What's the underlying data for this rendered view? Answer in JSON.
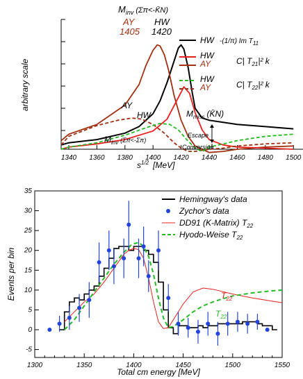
{
  "chart_data": [
    {
      "type": "line",
      "xlabel": "s^{1/2}  [MeV]",
      "xlabel_main": "s",
      "xlabel_sup": "1/2",
      "xlabel_unit": "[MeV]",
      "ylabel": "arbitrary scale",
      "xlim": [
        1325,
        1500
      ],
      "xticks": [
        1340,
        1360,
        1380,
        1400,
        1420,
        1440,
        1460,
        1480,
        1500
      ],
      "annotations": {
        "minv_top": "M_inv (Σπ<-K̄N)",
        "minv_top_main": "M",
        "minv_top_sub": "inv",
        "minv_top_paren": "(Σπ<-K̄N)",
        "ay_label": "AY",
        "ay_mass": "1405",
        "hw_label": "HW",
        "hw_mass": "1420",
        "ay_curve": "AY",
        "hw_curve": "HW",
        "minv_bottom_main": "M",
        "minv_bottom_sub": "inv",
        "minv_bottom_paren": "(Σπ<-Σπ)",
        "mmiss_main": "M",
        "mmiss_sub": "miss",
        "mmiss_paren": "(K̄N)",
        "escape": "Escape",
        "conversion": "Conversion"
      },
      "legend": [
        {
          "label": "HW",
          "formula": "-(1/π) Im T11",
          "color": "#000000",
          "style": "solid"
        },
        {
          "label": "HW / AY",
          "formula": "C| T21|² k",
          "color": "#e8201c",
          "style": "solid"
        },
        {
          "label": "HW / AY",
          "formula": "C| T22|² k",
          "color": "#22bb22",
          "style": "dashed"
        }
      ],
      "legend_text": {
        "hw1": "HW",
        "f1": "-(1/π) Im T",
        "f1_sub": "11",
        "hw2": "HW",
        "ay2": "AY",
        "f2": "C| T",
        "f2_sub": "21",
        "f2_tail": "|² k",
        "hw3": "HW",
        "ay3": "AY",
        "f3": "C| T",
        "f3_sub": "22",
        "f3_tail": "|² k"
      },
      "series": [
        {
          "key": "hw_im_t11",
          "color": "#000000",
          "dash": "",
          "x": [
            1325,
            1340,
            1360,
            1380,
            1390,
            1400,
            1405,
            1410,
            1415,
            1418,
            1420,
            1422,
            1425,
            1428,
            1430,
            1435,
            1440,
            1450,
            1460,
            1480,
            1500
          ],
          "y": [
            0.04,
            0.06,
            0.09,
            0.15,
            0.21,
            0.33,
            0.45,
            0.62,
            0.82,
            0.94,
            0.97,
            0.93,
            0.76,
            0.52,
            0.38,
            0.29,
            0.27,
            0.25,
            0.23,
            0.21,
            0.19
          ]
        },
        {
          "key": "ay_t21",
          "color": "#a03010",
          "dash": "",
          "x": [
            1325,
            1340,
            1360,
            1380,
            1390,
            1395,
            1400,
            1403,
            1405,
            1408,
            1411,
            1415,
            1420,
            1425,
            1430,
            1440,
            1450,
            1460,
            1480,
            1500
          ],
          "y": [
            0.08,
            0.14,
            0.23,
            0.41,
            0.6,
            0.78,
            0.92,
            0.97,
            0.96,
            0.88,
            0.74,
            0.5,
            0.27,
            0.12,
            0.03,
            -0.03,
            -0.02,
            0.0,
            0.02,
            0.03
          ]
        },
        {
          "key": "hw_t21",
          "color": "#e8201c",
          "dash": "",
          "x": [
            1325,
            1340,
            1360,
            1380,
            1400,
            1410,
            1418,
            1422,
            1426,
            1430,
            1435,
            1440,
            1450,
            1460,
            1480,
            1500
          ],
          "y": [
            0.0,
            0.02,
            0.05,
            0.09,
            0.17,
            0.28,
            0.48,
            0.58,
            0.52,
            0.34,
            0.18,
            0.09,
            0.04,
            0.02,
            0.01,
            0.0
          ]
        },
        {
          "key": "ay_t22",
          "color": "#a03010",
          "dash": "5,3",
          "x": [
            1325,
            1340,
            1360,
            1375,
            1385,
            1392,
            1400,
            1408,
            1415,
            1420,
            1425,
            1430,
            1440,
            1450,
            1460,
            1480,
            1500
          ],
          "y": [
            0.04,
            0.12,
            0.22,
            0.27,
            0.29,
            0.28,
            0.23,
            0.15,
            0.06,
            0.01,
            -0.02,
            -0.02,
            0.0,
            0.01,
            0.03,
            0.05,
            0.06
          ]
        },
        {
          "key": "hw_t22",
          "color": "#22bb22",
          "dash": "5,3",
          "x": [
            1325,
            1340,
            1360,
            1380,
            1395,
            1405,
            1412,
            1418,
            1424,
            1430,
            1435,
            1440,
            1450,
            1460,
            1480,
            1500
          ],
          "y": [
            0.0,
            0.02,
            0.06,
            0.13,
            0.2,
            0.24,
            0.23,
            0.18,
            0.09,
            0.01,
            -0.02,
            0.02,
            0.05,
            0.08,
            0.12,
            0.14
          ]
        }
      ]
    },
    {
      "type": "line",
      "xlabel": "Total cm energy [MeV]",
      "ylabel": "Events per bin",
      "xlim": [
        1300,
        1550
      ],
      "ylim": [
        -7,
        35
      ],
      "xticks": [
        1300,
        1350,
        1400,
        1450,
        1500,
        1550
      ],
      "yticks": [
        -5,
        0,
        5,
        10,
        15,
        20,
        25,
        30,
        35
      ],
      "legend": [
        {
          "label": "Hemingway's data",
          "color": "#000000",
          "style": "step"
        },
        {
          "label": "Zychor's data",
          "color": "#2244dd",
          "style": "points"
        },
        {
          "label": "DD91 (K-Matrix)  T22",
          "color": "#e8201c",
          "style": "solid"
        },
        {
          "label": "Hyodo-Weise  T22",
          "color": "#22bb22",
          "style": "dashed"
        }
      ],
      "legend_text": {
        "l1": "Hemingway's data",
        "l2": "Zychor's data",
        "l3": "DD91 (K-Matrix)  T",
        "l3_sub": "22",
        "l4": "Hyodo-Weise  T",
        "l4_sub": "22"
      },
      "curve_labels": {
        "red": "T",
        "red_sub": "22",
        "green": "T",
        "green_sub": "22"
      },
      "hemingway_step": {
        "edges": [
          1325,
          1330,
          1335,
          1340,
          1345,
          1350,
          1355,
          1360,
          1365,
          1370,
          1375,
          1380,
          1385,
          1390,
          1395,
          1400,
          1405,
          1410,
          1415,
          1420,
          1425,
          1430,
          1435,
          1440,
          1445,
          1450,
          1455,
          1460,
          1465,
          1470,
          1475,
          1480,
          1485,
          1490,
          1495,
          1500,
          1505,
          1510,
          1515,
          1520,
          1525,
          1530,
          1535,
          1540,
          1545
        ],
        "values": [
          0,
          4.5,
          7,
          8,
          7.5,
          9,
          10,
          11,
          13.5,
          15.5,
          18,
          20.5,
          21,
          21,
          20,
          21,
          21,
          20,
          19,
          17,
          12,
          5,
          0.5,
          -1,
          1,
          1,
          0.5,
          0.5,
          1,
          0.5,
          1,
          1,
          1.5,
          1.5,
          1.5,
          1.5,
          1.5,
          2,
          2,
          2,
          1.5,
          1,
          1,
          0
        ]
      },
      "zychor_points": [
        {
          "x": 1315,
          "y": 0,
          "err": 0
        },
        {
          "x": 1325,
          "y": 1.5,
          "err": 2
        },
        {
          "x": 1335,
          "y": 3,
          "err": 3
        },
        {
          "x": 1345,
          "y": 5.5,
          "err": 3.5
        },
        {
          "x": 1355,
          "y": 7.5,
          "err": 4.5
        },
        {
          "x": 1365,
          "y": 17,
          "err": 5
        },
        {
          "x": 1375,
          "y": 20,
          "err": 5
        },
        {
          "x": 1380,
          "y": 16,
          "err": 4.5
        },
        {
          "x": 1390,
          "y": 18,
          "err": 5
        },
        {
          "x": 1395,
          "y": 26.5,
          "err": 6
        },
        {
          "x": 1405,
          "y": 18,
          "err": 5
        },
        {
          "x": 1410,
          "y": 21,
          "err": 5
        },
        {
          "x": 1415,
          "y": 13.5,
          "err": 4
        },
        {
          "x": 1425,
          "y": 20,
          "err": 5
        },
        {
          "x": 1435,
          "y": 8,
          "err": 3.5
        },
        {
          "x": 1445,
          "y": 1.5,
          "err": 3
        },
        {
          "x": 1455,
          "y": 0.5,
          "err": 2.5
        },
        {
          "x": 1465,
          "y": -0.5,
          "err": 3
        },
        {
          "x": 1475,
          "y": 1.5,
          "err": 3
        },
        {
          "x": 1485,
          "y": -1,
          "err": 3
        },
        {
          "x": 1495,
          "y": 1.5,
          "err": 3
        },
        {
          "x": 1505,
          "y": 2,
          "err": 2.5
        },
        {
          "x": 1515,
          "y": 1.5,
          "err": 2.5
        },
        {
          "x": 1525,
          "y": 2,
          "err": 2
        },
        {
          "x": 1535,
          "y": 0,
          "err": 0
        }
      ],
      "series": [
        {
          "key": "dd91_t22",
          "color": "#e8201c",
          "dash": "",
          "x": [
            1330,
            1340,
            1350,
            1360,
            1370,
            1380,
            1390,
            1395,
            1400,
            1405,
            1410,
            1415,
            1420,
            1425,
            1430,
            1435,
            1440,
            1450,
            1460,
            1470,
            1480,
            1500,
            1520,
            1540,
            1550
          ],
          "y": [
            2,
            4.5,
            7,
            9,
            12,
            15.5,
            19,
            20,
            20.5,
            20.2,
            18,
            13,
            7,
            2,
            0.3,
            0.5,
            2.5,
            6.5,
            9.5,
            10.5,
            10.2,
            9,
            8,
            7.2,
            6.8
          ]
        },
        {
          "key": "hyodo_weise_t22",
          "color": "#22bb22",
          "dash": "6,4",
          "x": [
            1330,
            1340,
            1350,
            1360,
            1370,
            1380,
            1390,
            1398,
            1405,
            1410,
            1415,
            1420,
            1425,
            1430,
            1435,
            1440,
            1450,
            1460,
            1470,
            1480,
            1490,
            1500,
            1520,
            1540,
            1550
          ],
          "y": [
            0,
            2.5,
            6,
            9.5,
            13,
            16.5,
            19.5,
            21.5,
            22,
            21,
            18.5,
            14,
            8,
            3,
            0.5,
            0.8,
            2.5,
            4.5,
            6,
            7,
            7.8,
            8.5,
            9.3,
            9.8,
            10
          ]
        }
      ]
    }
  ]
}
